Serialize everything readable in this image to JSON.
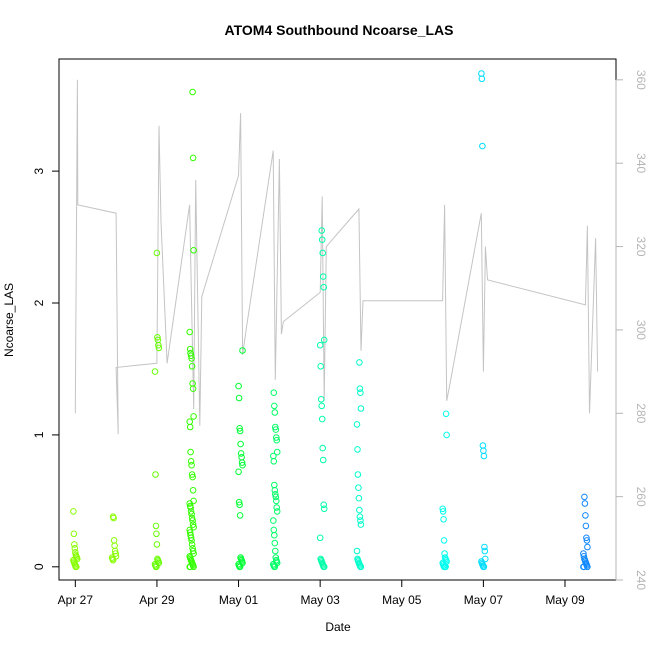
{
  "chart_data": {
    "type": "scatter",
    "title": "ATOM4 Southbound Ncoarse_LAS",
    "xlabel": "Date",
    "ylabel": "Ncoarse_LAS",
    "xlim": [
      -0.4,
      13.25
    ],
    "ylim": [
      -0.1,
      3.85
    ],
    "y2lim": [
      240,
      365
    ],
    "x_ticks": [
      {
        "value": 0,
        "label": "Apr 27"
      },
      {
        "value": 2,
        "label": "Apr 29"
      },
      {
        "value": 4,
        "label": "May 01"
      },
      {
        "value": 6,
        "label": "May 03"
      },
      {
        "value": 8,
        "label": "May 05"
      },
      {
        "value": 10,
        "label": "May 07"
      },
      {
        "value": 12,
        "label": "May 09"
      }
    ],
    "y_ticks": [
      0,
      1,
      2,
      3
    ],
    "y2_ticks": [
      240,
      260,
      280,
      300,
      320,
      340,
      360
    ],
    "colors": {
      "overlay_line": "#c4c4c4",
      "right_axis": "#b5b5b5",
      "point_palette": [
        "#88ff00",
        "#66ff00",
        "#33ff00",
        "#00ff33",
        "#00ff66",
        "#00ffaa",
        "#00ffcc",
        "#00ffee",
        "#00ddff",
        "#00aaff",
        "#1188ff"
      ]
    },
    "series": [
      {
        "name": "Ncoarse_LAS",
        "type": "scatter",
        "axis": "left",
        "clusters": [
          {
            "x": 0.0,
            "color_index": 0,
            "values": [
              0.42,
              0.25,
              0.17,
              0.14,
              0.11,
              0.09,
              0.08,
              0.07,
              0.06,
              0.05,
              0.04,
              0.03,
              0.02,
              0.01,
              0.0,
              0.0
            ]
          },
          {
            "x": 0.95,
            "color_index": 0,
            "values": [
              0.38,
              0.37,
              0.2,
              0.16,
              0.12,
              0.1,
              0.08,
              0.07,
              0.06,
              0.05
            ]
          },
          {
            "x": 2.0,
            "color_index": 1,
            "values": [
              2.38,
              1.74,
              1.72,
              1.68,
              1.66,
              1.48,
              0.7,
              0.31,
              0.25,
              0.17,
              0.06,
              0.05,
              0.04,
              0.03,
              0.02,
              0.01,
              0.0,
              0.0
            ]
          },
          {
            "x": 2.85,
            "color_index": 2,
            "values": [
              3.6,
              3.1,
              2.4,
              1.78,
              1.65,
              1.62,
              1.6,
              1.58,
              1.52,
              1.39,
              1.35,
              1.14,
              1.1,
              1.06,
              0.87,
              0.8,
              0.77,
              0.7,
              0.68,
              0.58,
              0.5,
              0.48,
              0.46,
              0.45,
              0.42,
              0.4,
              0.37,
              0.35,
              0.32,
              0.3,
              0.28,
              0.26,
              0.24,
              0.22,
              0.2,
              0.17,
              0.14,
              0.12,
              0.1,
              0.08,
              0.07,
              0.06,
              0.05,
              0.04,
              0.03,
              0.02,
              0.01,
              0.0,
              0.0,
              0.0
            ]
          },
          {
            "x": 4.05,
            "color_index": 3,
            "values": [
              1.64,
              1.37,
              1.28,
              1.05,
              1.03,
              0.93,
              0.86,
              0.83,
              0.79,
              0.77,
              0.72,
              0.49,
              0.47,
              0.39,
              0.07,
              0.06,
              0.05,
              0.04,
              0.03,
              0.02,
              0.01,
              0.0,
              0.0
            ]
          },
          {
            "x": 4.9,
            "color_index": 4,
            "values": [
              1.32,
              1.22,
              1.17,
              1.06,
              1.04,
              0.98,
              0.96,
              0.87,
              0.84,
              0.8,
              0.62,
              0.58,
              0.55,
              0.53,
              0.5,
              0.45,
              0.42,
              0.35,
              0.28,
              0.24,
              0.18,
              0.12,
              0.07,
              0.05,
              0.04,
              0.03,
              0.02,
              0.01,
              0.0,
              0.0
            ]
          },
          {
            "x": 6.05,
            "color_index": 5,
            "values": [
              2.55,
              2.48,
              2.38,
              2.2,
              2.12,
              1.72,
              1.68,
              1.52,
              1.27,
              1.22,
              1.12,
              0.9,
              0.81,
              0.47,
              0.44,
              0.22,
              0.06,
              0.05,
              0.04,
              0.03,
              0.02,
              0.01,
              0.0,
              0.0
            ]
          },
          {
            "x": 6.95,
            "color_index": 6,
            "values": [
              1.55,
              1.35,
              1.32,
              1.2,
              1.08,
              0.89,
              0.7,
              0.6,
              0.52,
              0.43,
              0.38,
              0.35,
              0.32,
              0.12,
              0.06,
              0.05,
              0.04,
              0.03,
              0.02,
              0.01,
              0.0,
              0.0
            ]
          },
          {
            "x": 9.05,
            "color_index": 7,
            "values": [
              1.16,
              1.0,
              0.44,
              0.42,
              0.36,
              0.2,
              0.1,
              0.07,
              0.06,
              0.05,
              0.04,
              0.03,
              0.02,
              0.01,
              0.0,
              0.0,
              0.0,
              0.0
            ]
          },
          {
            "x": 10.0,
            "color_index": 8,
            "values": [
              3.74,
              3.7,
              3.19,
              0.92,
              0.88,
              0.84,
              0.15,
              0.12,
              0.06,
              0.04,
              0.03,
              0.02,
              0.01,
              0.0,
              0.0
            ]
          },
          {
            "x": 12.5,
            "color_index": 10,
            "values": [
              0.53,
              0.48,
              0.39,
              0.31,
              0.22,
              0.2,
              0.15,
              0.1,
              0.08,
              0.06,
              0.05,
              0.04,
              0.03,
              0.02,
              0.01,
              0.0,
              0.0,
              0.0
            ]
          }
        ]
      },
      {
        "name": "overlay (right axis)",
        "type": "line",
        "axis": "right",
        "points": [
          [
            0.0,
            280
          ],
          [
            0.05,
            360
          ],
          [
            0.06,
            330
          ],
          [
            1.0,
            328
          ],
          [
            1.05,
            275
          ],
          [
            1.0,
            291
          ],
          [
            2.0,
            292
          ],
          [
            2.05,
            349
          ],
          [
            2.1,
            326
          ],
          [
            2.25,
            292
          ],
          [
            2.8,
            330
          ],
          [
            2.9,
            281
          ],
          [
            2.95,
            336
          ],
          [
            3.05,
            277
          ],
          [
            3.1,
            308
          ],
          [
            4.0,
            337
          ],
          [
            4.05,
            352
          ],
          [
            4.1,
            294
          ],
          [
            4.2,
            301
          ],
          [
            4.85,
            343
          ],
          [
            4.9,
            288
          ],
          [
            5.0,
            341
          ],
          [
            5.05,
            299
          ],
          [
            5.1,
            302
          ],
          [
            6.0,
            309
          ],
          [
            6.05,
            332
          ],
          [
            6.1,
            283
          ],
          [
            6.15,
            320
          ],
          [
            6.95,
            329
          ],
          [
            7.0,
            295
          ],
          [
            7.05,
            307
          ],
          [
            9.0,
            307
          ],
          [
            9.05,
            330
          ],
          [
            9.1,
            283
          ],
          [
            9.2,
            288
          ],
          [
            9.95,
            328
          ],
          [
            10.0,
            290
          ],
          [
            10.05,
            320
          ],
          [
            10.1,
            312
          ],
          [
            12.5,
            306
          ],
          [
            12.55,
            325
          ],
          [
            12.6,
            280
          ],
          [
            12.75,
            322
          ],
          [
            12.8,
            290
          ]
        ]
      }
    ]
  }
}
